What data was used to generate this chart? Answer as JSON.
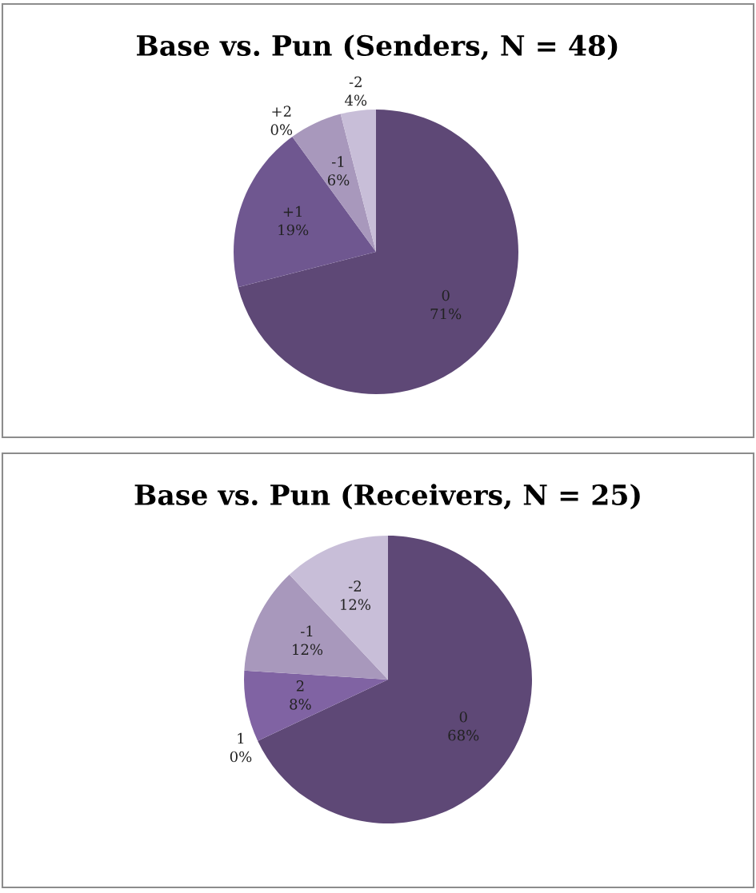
{
  "chart_data": [
    {
      "type": "pie",
      "title": "Base vs. Pun (Senders, N = 48)",
      "categories": [
        "0",
        "+1",
        "+2",
        "-1",
        "-2"
      ],
      "values": [
        71,
        19,
        0,
        6,
        4
      ],
      "value_labels": [
        "71%",
        "19%",
        "0%",
        "6%",
        "4%"
      ],
      "colors": [
        "#5e4876",
        "#6f5790",
        "#8a72aa",
        "#a898bc",
        "#c8bed8"
      ]
    },
    {
      "type": "pie",
      "title": "Base vs. Pun (Receivers, N = 25)",
      "categories": [
        "0",
        "1",
        "2",
        "-1",
        "-2"
      ],
      "values": [
        68,
        0,
        8,
        12,
        12
      ],
      "value_labels": [
        "68%",
        "0%",
        "8%",
        "12%",
        "12%"
      ],
      "colors": [
        "#5e4876",
        "#6f5790",
        "#8063a3",
        "#a898bc",
        "#c8bed8"
      ]
    }
  ]
}
